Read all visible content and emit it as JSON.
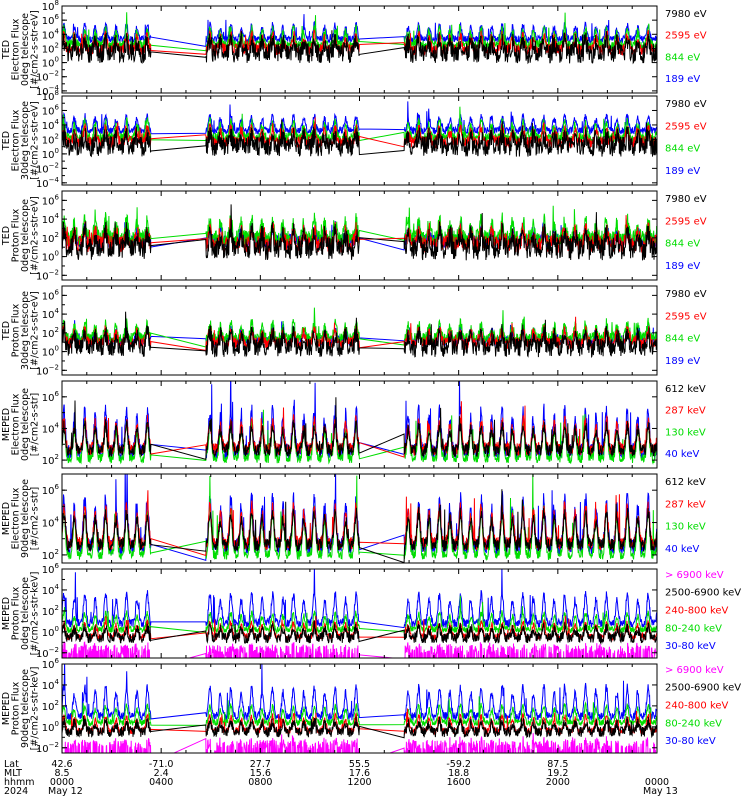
{
  "colors": {
    "black": "#000000",
    "red": "#ff0000",
    "green": "#00dd00",
    "blue": "#0000ff",
    "magenta": "#ff00ff"
  },
  "chart_data": [
    {
      "type": "line",
      "id": "p1",
      "ylabel": [
        "TED",
        "Electron Flux",
        "0deg telescope",
        "[#/cm2-s-str-eV]"
      ],
      "ytick_exps": [
        8,
        6,
        4,
        2,
        0,
        -2,
        -4
      ],
      "ylim_log10": [
        -4.3,
        8.0
      ],
      "series": [
        {
          "name": "7980 eV",
          "color": "#000000",
          "base": 1.3,
          "amp": 1.8,
          "noise": 1.4
        },
        {
          "name": "2595 eV",
          "color": "#ff0000",
          "base": 1.8,
          "amp": 2.0,
          "noise": 0.8
        },
        {
          "name": "844 eV",
          "color": "#00dd00",
          "base": 2.4,
          "amp": 2.3,
          "noise": 0.7
        },
        {
          "name": "189 eV",
          "color": "#0000ff",
          "base": 3.3,
          "amp": 2.0,
          "noise": 0.5
        }
      ]
    },
    {
      "type": "line",
      "id": "p2",
      "ylabel": [
        "TED",
        "Electron Flux",
        "30deg telescope",
        "[#/cm2-s-str-eV]"
      ],
      "ytick_exps": [
        8,
        6,
        4,
        2,
        0,
        -2,
        -4
      ],
      "ylim_log10": [
        -4.3,
        8.0
      ],
      "series": [
        {
          "name": "7980 eV",
          "color": "#000000",
          "base": 1.0,
          "amp": 1.6,
          "noise": 1.4
        },
        {
          "name": "2595 eV",
          "color": "#ff0000",
          "base": 1.6,
          "amp": 1.9,
          "noise": 0.8
        },
        {
          "name": "844 eV",
          "color": "#00dd00",
          "base": 2.2,
          "amp": 2.2,
          "noise": 0.7
        },
        {
          "name": "189 eV",
          "color": "#0000ff",
          "base": 3.2,
          "amp": 2.0,
          "noise": 0.5
        }
      ]
    },
    {
      "type": "line",
      "id": "p3",
      "ylabel": [
        "TED",
        "Proton Flux",
        "0deg telescope",
        "[#/cm2-s-str-eV]"
      ],
      "ytick_exps": [
        6,
        4,
        2,
        0,
        -2
      ],
      "ylim_log10": [
        -2.5,
        7.0
      ],
      "series": [
        {
          "name": "7980 eV",
          "color": "#000000",
          "base": 0.8,
          "amp": 1.8,
          "noise": 1.2
        },
        {
          "name": "2595 eV",
          "color": "#ff0000",
          "base": 1.3,
          "amp": 1.6,
          "noise": 0.9
        },
        {
          "name": "844 eV",
          "color": "#00dd00",
          "base": 1.9,
          "amp": 2.0,
          "noise": 0.9
        },
        {
          "name": "189 eV",
          "color": "#0000ff",
          "base": 1.6,
          "amp": 1.5,
          "noise": 0.7
        }
      ]
    },
    {
      "type": "line",
      "id": "p4",
      "ylabel": [
        "TED",
        "Proton Flux",
        "30deg telescope",
        "[#/cm2-s-str-eV]"
      ],
      "ytick_exps": [
        6,
        4,
        2,
        0,
        -2
      ],
      "ylim_log10": [
        -2.5,
        7.0
      ],
      "series": [
        {
          "name": "7980 eV",
          "color": "#000000",
          "base": 0.4,
          "amp": 1.6,
          "noise": 1.0
        },
        {
          "name": "2595 eV",
          "color": "#ff0000",
          "base": 0.9,
          "amp": 1.4,
          "noise": 0.6
        },
        {
          "name": "844 eV",
          "color": "#00dd00",
          "base": 1.4,
          "amp": 1.6,
          "noise": 0.6
        },
        {
          "name": "189 eV",
          "color": "#0000ff",
          "base": 1.1,
          "amp": 1.3,
          "noise": 0.5
        }
      ]
    },
    {
      "type": "line",
      "id": "p5",
      "ylabel": [
        "MEPED",
        "Electron Flux",
        "0deg telescope",
        "[#/cm2-s-str]"
      ],
      "ytick_exps": [
        6,
        4,
        2
      ],
      "ylim_log10": [
        1.5,
        7.0
      ],
      "series": [
        {
          "name": "612 keV",
          "color": "#000000",
          "base": 2.6,
          "amp": 1.6,
          "noise": 0.4
        },
        {
          "name": "287 keV",
          "color": "#ff0000",
          "base": 2.7,
          "amp": 1.8,
          "noise": 0.4
        },
        {
          "name": "130 keV",
          "color": "#00dd00",
          "base": 2.1,
          "amp": 2.2,
          "noise": 0.3
        },
        {
          "name": "40 keV",
          "color": "#0000ff",
          "base": 2.5,
          "amp": 2.6,
          "noise": 0.5
        }
      ]
    },
    {
      "type": "line",
      "id": "p6",
      "ylabel": [
        "MEPED",
        "Electron Flux",
        "90deg telescope",
        "[#/cm2-s-str]"
      ],
      "ytick_exps": [
        6,
        4,
        2
      ],
      "ylim_log10": [
        1.5,
        7.0
      ],
      "series": [
        {
          "name": "612 keV",
          "color": "#000000",
          "base": 2.6,
          "amp": 2.0,
          "noise": 0.4
        },
        {
          "name": "287 keV",
          "color": "#ff0000",
          "base": 2.7,
          "amp": 2.3,
          "noise": 0.4
        },
        {
          "name": "130 keV",
          "color": "#00dd00",
          "base": 2.0,
          "amp": 2.8,
          "noise": 0.3
        },
        {
          "name": "40 keV",
          "color": "#0000ff",
          "base": 2.5,
          "amp": 3.0,
          "noise": 0.5
        }
      ]
    },
    {
      "type": "line",
      "id": "p7",
      "ylabel": [
        "MEPED",
        "Proton Flux",
        "0deg telescope",
        "[#/cm2-s-str-keV]"
      ],
      "ytick_exps": [
        6,
        4,
        2,
        0,
        -2
      ],
      "ylim_log10": [
        -2.5,
        6.0
      ],
      "series": [
        {
          "name": "> 6900 keV",
          "color": "#ff00ff",
          "base": -1.8,
          "amp": 0.4,
          "noise": 0.5
        },
        {
          "name": "2500-6900 keV",
          "color": "#000000",
          "base": -0.6,
          "amp": 1.0,
          "noise": 0.5
        },
        {
          "name": "240-800 keV",
          "color": "#ff0000",
          "base": -0.5,
          "amp": 1.4,
          "noise": 0.3
        },
        {
          "name": "80-240 keV",
          "color": "#00dd00",
          "base": 0.2,
          "amp": 1.6,
          "noise": 0.3
        },
        {
          "name": "30-80 keV",
          "color": "#0000ff",
          "base": 0.8,
          "amp": 2.8,
          "noise": 0.4
        }
      ]
    },
    {
      "type": "line",
      "id": "p8",
      "ylabel": [
        "MEPED",
        "Proton Flux",
        "90deg telescope",
        "[#/cm2-s-str-keV]"
      ],
      "ytick_exps": [
        6,
        4,
        2,
        0,
        -2
      ],
      "ylim_log10": [
        -2.5,
        6.0
      ],
      "series": [
        {
          "name": "> 6900 keV",
          "color": "#ff00ff",
          "base": -1.8,
          "amp": 0.4,
          "noise": 0.5
        },
        {
          "name": "2500-6900 keV",
          "color": "#000000",
          "base": -0.5,
          "amp": 1.0,
          "noise": 0.5
        },
        {
          "name": "240-800 keV",
          "color": "#ff0000",
          "base": -0.4,
          "amp": 1.4,
          "noise": 0.3
        },
        {
          "name": "80-240 keV",
          "color": "#00dd00",
          "base": 0.4,
          "amp": 1.6,
          "noise": 0.3
        },
        {
          "name": "30-80 keV",
          "color": "#0000ff",
          "base": 1.0,
          "amp": 2.8,
          "noise": 0.4
        }
      ]
    }
  ],
  "x_axis": {
    "row_labels": [
      "Lat",
      "MLT",
      "hhmm",
      "2024"
    ],
    "ticks": [
      {
        "t": 0,
        "lat": "42.6",
        "mlt": "8.5",
        "hhmm": "0000",
        "date": "May 12"
      },
      {
        "t": 240,
        "lat": "-71.0",
        "mlt": "2.4",
        "hhmm": "0400",
        "date": ""
      },
      {
        "t": 480,
        "lat": "27.7",
        "mlt": "15.6",
        "hhmm": "0800",
        "date": ""
      },
      {
        "t": 720,
        "lat": "55.5",
        "mlt": "17.6",
        "hhmm": "1200",
        "date": ""
      },
      {
        "t": 960,
        "lat": "-59.2",
        "mlt": "18.8",
        "hhmm": "1600",
        "date": ""
      },
      {
        "t": 1200,
        "lat": "87.5",
        "mlt": "19.2",
        "hhmm": "2000",
        "date": ""
      },
      {
        "t": 1440,
        "lat": "",
        "mlt": "",
        "hhmm": "0000",
        "date": "May 13"
      }
    ],
    "minutes_range": [
      0,
      1440
    ],
    "data_gaps_minutes": [
      [
        216,
        348
      ],
      [
        720,
        828
      ]
    ]
  }
}
